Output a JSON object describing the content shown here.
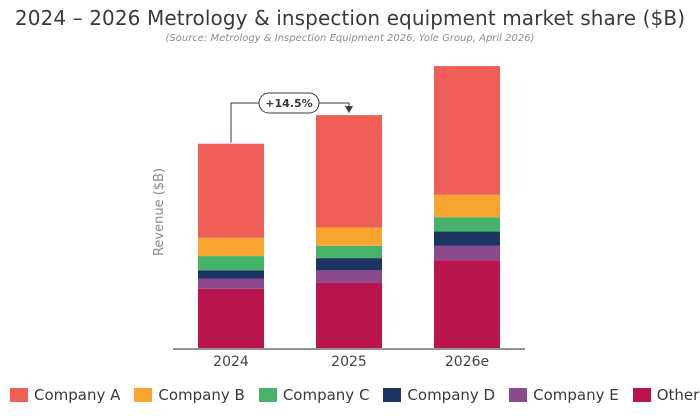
{
  "header": {
    "title": "2024 – 2026 Metrology & inspection equipment market share ($B)",
    "subtitle": "(Source: Metrology & Inspection Equipment 2026, Yole Group, April 2026)"
  },
  "colors": {
    "Company A": "#ef5e57",
    "Company B": "#f8a532",
    "Company C": "#46b36b",
    "Company D": "#1c3462",
    "Company E": "#8a4a8b",
    "Others": "#b8154e",
    "axis": "#555555",
    "annotation": "#3a3a3a"
  },
  "chart_data": {
    "type": "bar",
    "stacked": true,
    "title": "2024 – 2026 Metrology & inspection equipment market share ($B)",
    "subtitle": "(Source: Metrology & Inspection Equipment 2026, Yole Group, April 2026)",
    "xlabel": "",
    "ylabel": "Revenue ($B)",
    "categories": [
      "2024",
      "2025",
      "2026e"
    ],
    "y_scale_note": "axis unlabeled; values read as pixel-proportional estimates in $B-equivalent units",
    "ylim": [
      0,
      14
    ],
    "series": [
      {
        "name": "Others",
        "values": [
          2.9,
          3.2,
          4.3
        ]
      },
      {
        "name": "Company E",
        "values": [
          0.5,
          0.6,
          0.7
        ]
      },
      {
        "name": "Company D",
        "values": [
          0.4,
          0.6,
          0.7
        ]
      },
      {
        "name": "Company C",
        "values": [
          0.7,
          0.6,
          0.7
        ]
      },
      {
        "name": "Company B",
        "values": [
          0.9,
          0.9,
          1.1
        ]
      },
      {
        "name": "Company A",
        "values": [
          4.6,
          5.5,
          6.3
        ]
      }
    ],
    "annotations": [
      {
        "text": "+14.5%",
        "from": "2024",
        "to": "2025"
      }
    ],
    "legend": {
      "placement": "bottom",
      "entries": [
        "Company A",
        "Company B",
        "Company C",
        "Company D",
        "Company E",
        "Others"
      ]
    },
    "grid": false
  }
}
